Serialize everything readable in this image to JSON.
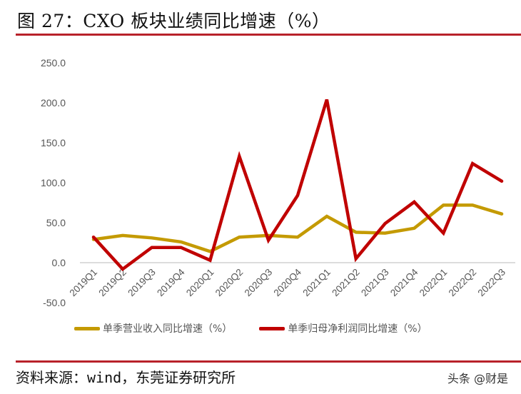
{
  "header": {
    "title": "图 27：CXO 板块业绩同比增速（%）"
  },
  "footer": {
    "source": "资料来源：wind，东莞证券研究所",
    "watermark": "头条 @财是"
  },
  "colors": {
    "revenue": "#C49A00",
    "profit": "#C00000",
    "rule": "#B8222A",
    "zero_line": "#D0D0D0"
  },
  "legend": {
    "revenue": "单季营业收入同比增速（%）",
    "profit": "单季归母净利润同比增速（%）"
  },
  "chart_data": {
    "type": "line",
    "title": "CXO 板块业绩同比增速（%）",
    "xlabel": "",
    "ylabel": "",
    "ylim": [
      -50,
      250
    ],
    "yticks": [
      "250.0",
      "200.0",
      "150.0",
      "100.0",
      "50.0",
      "0.0",
      "-50.0"
    ],
    "grid": false,
    "legend_position": "bottom",
    "categories": [
      "2019Q1",
      "2019Q2",
      "2019Q3",
      "2019Q4",
      "2020Q1",
      "2020Q2",
      "2020Q3",
      "2020Q4",
      "2021Q1",
      "2021Q2",
      "2021Q3",
      "2021Q4",
      "2022Q1",
      "2022Q2",
      "2022Q3"
    ],
    "series": [
      {
        "name": "单季营业收入同比增速（%）",
        "values": [
          29,
          34,
          31,
          26,
          14,
          32,
          34,
          32,
          58,
          38,
          37,
          43,
          72,
          72,
          61
        ]
      },
      {
        "name": "单季归母净利润同比增速（%）",
        "values": [
          32,
          -8,
          19,
          19,
          3,
          133,
          28,
          84,
          204,
          5,
          49,
          76,
          37,
          124,
          102
        ]
      }
    ]
  }
}
